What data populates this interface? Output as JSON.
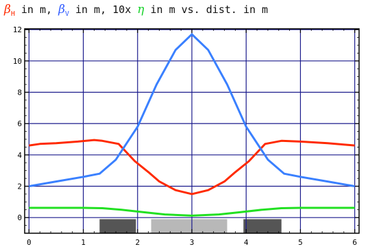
{
  "title": {
    "beta_h": "β",
    "beta_h_sub": "H",
    "part1": " in m, ",
    "beta_v": "β",
    "beta_v_sub": "V",
    "part2": " in m, 10x ",
    "eta": "η",
    "part3": " in m vs. dist. in m"
  },
  "chart_data": {
    "type": "line",
    "title": "βH in m, βV in m, 10x η in m vs. dist. in m",
    "xlabel": "",
    "ylabel": "",
    "xlim": [
      -0.08,
      6.08
    ],
    "ylim": [
      -1.0,
      12.05
    ],
    "xticks": [
      0,
      1,
      2,
      3,
      4,
      5,
      6
    ],
    "yticks": [
      0,
      2,
      4,
      6,
      8,
      10,
      12
    ],
    "grid": true,
    "colors": {
      "beta_h": "#ff2a00",
      "beta_v": "#3a80ff",
      "eta": "#22e022",
      "grid": "#1a1a8c",
      "magnet_dark": "#555555",
      "magnet_light": "#b8b8b8"
    },
    "series": [
      {
        "name": "βH",
        "color": "#ff2a00",
        "x": [
          0,
          0.2,
          0.5,
          0.9,
          1.2,
          1.35,
          1.65,
          1.95,
          2.2,
          2.4,
          2.7,
          3.0,
          3.3,
          3.6,
          3.8,
          4.05,
          4.35,
          4.65,
          5.0,
          5.5,
          6.0
        ],
        "y": [
          4.6,
          4.7,
          4.75,
          4.85,
          4.95,
          4.9,
          4.7,
          3.6,
          2.9,
          2.3,
          1.75,
          1.5,
          1.75,
          2.3,
          2.9,
          3.6,
          4.7,
          4.9,
          4.85,
          4.75,
          4.6
        ]
      },
      {
        "name": "βV",
        "color": "#3a80ff",
        "x": [
          0,
          0.5,
          1.0,
          1.3,
          1.6,
          2.0,
          2.35,
          2.7,
          3.0,
          3.3,
          3.65,
          4.0,
          4.4,
          4.7,
          5.0,
          5.5,
          6.0
        ],
        "y": [
          2.0,
          2.3,
          2.6,
          2.8,
          3.7,
          5.8,
          8.5,
          10.7,
          11.7,
          10.7,
          8.5,
          5.8,
          3.7,
          2.8,
          2.6,
          2.3,
          2.0
        ]
      },
      {
        "name": "10x η",
        "color": "#22e022",
        "x": [
          0,
          0.5,
          1.0,
          1.35,
          1.7,
          2.1,
          2.5,
          3.0,
          3.5,
          3.9,
          4.3,
          4.65,
          5.0,
          5.5,
          6.0
        ],
        "y": [
          0.62,
          0.62,
          0.62,
          0.6,
          0.5,
          0.35,
          0.2,
          0.12,
          0.2,
          0.35,
          0.5,
          0.6,
          0.62,
          0.62,
          0.62
        ]
      }
    ],
    "elements": [
      {
        "kind": "dark",
        "x0": 1.3,
        "x1": 1.97,
        "y0": -1.0,
        "y1": -0.1
      },
      {
        "kind": "light",
        "x0": 2.25,
        "x1": 3.65,
        "y0": -1.0,
        "y1": -0.1
      },
      {
        "kind": "dark",
        "x0": 3.95,
        "x1": 4.65,
        "y0": -1.0,
        "y1": -0.1
      }
    ]
  }
}
